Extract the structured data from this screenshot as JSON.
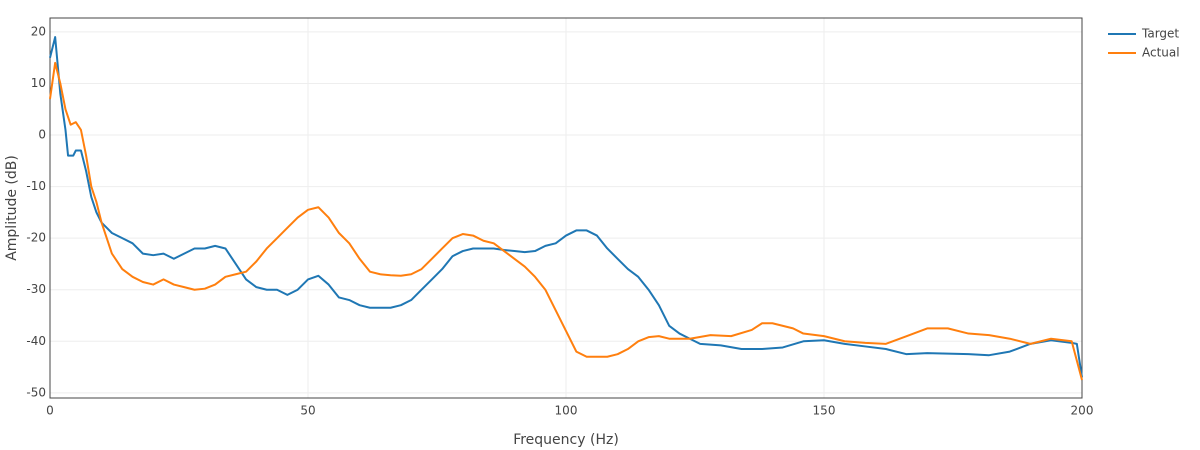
{
  "chart_data": {
    "type": "line",
    "xlabel": "Frequency (Hz)",
    "ylabel": "Amplitude (dB)",
    "xlim": [
      0,
      200
    ],
    "xticks": [
      0,
      50,
      100,
      150,
      200
    ],
    "ylim": [
      -51,
      22.7
    ],
    "yticks": [
      -50,
      -40,
      -30,
      -20,
      -10,
      0,
      10,
      20
    ],
    "grid": true,
    "legend": "outside-right",
    "series": [
      {
        "name": "Target",
        "color": "#1f77b4",
        "x": [
          0,
          1,
          2,
          3,
          3.5,
          4.5,
          5,
          6,
          7,
          8,
          9,
          10,
          11,
          12,
          14,
          16,
          18,
          20,
          22,
          24,
          26,
          28,
          30,
          32,
          34,
          36,
          38,
          40,
          42,
          44,
          46,
          48,
          50,
          52,
          54,
          56,
          58,
          60,
          62,
          64,
          66,
          68,
          70,
          72,
          74,
          76,
          78,
          80,
          82,
          84,
          86,
          88,
          90,
          92,
          94,
          96,
          98,
          100,
          102,
          104,
          106,
          108,
          110,
          112,
          114,
          116,
          118,
          120,
          122,
          124,
          126,
          130,
          134,
          138,
          142,
          146,
          150,
          154,
          158,
          162,
          166,
          170,
          174,
          178,
          182,
          186,
          190,
          194,
          198,
          199,
          200
        ],
        "values": [
          15,
          19,
          8,
          1,
          -4,
          -4,
          -3,
          -3,
          -7,
          -12,
          -15,
          -17,
          -18,
          -19,
          -20,
          -21,
          -23,
          -23.3,
          -23,
          -24,
          -23,
          -22,
          -22,
          -21.5,
          -22,
          -25,
          -28,
          -29.5,
          -30,
          -30,
          -31,
          -30,
          -28,
          -27.3,
          -29,
          -31.5,
          -32,
          -33,
          -33.5,
          -33.5,
          -33.5,
          -33,
          -32,
          -30,
          -28,
          -26,
          -23.5,
          -22.5,
          -22,
          -22,
          -22,
          -22.3,
          -22.5,
          -22.7,
          -22.5,
          -21.5,
          -21,
          -19.5,
          -18.5,
          -18.5,
          -19.5,
          -22,
          -24,
          -26,
          -27.5,
          -30,
          -33,
          -37,
          -38.5,
          -39.5,
          -40.5,
          -40.8,
          -41.5,
          -41.5,
          -41.2,
          -40,
          -39.8,
          -40.5,
          -41,
          -41.5,
          -42.5,
          -42.3,
          -42.4,
          -42.5,
          -42.7,
          -42,
          -40.5,
          -39.8,
          -40.3,
          -40.5,
          -47
        ]
      },
      {
        "name": "Actual",
        "color": "#ff7f0e",
        "x": [
          0,
          1,
          2,
          3,
          4,
          5,
          6,
          7,
          8,
          9,
          10,
          11,
          12,
          14,
          16,
          18,
          20,
          22,
          24,
          26,
          28,
          30,
          32,
          34,
          36,
          38,
          40,
          42,
          44,
          46,
          48,
          50,
          52,
          54,
          56,
          58,
          60,
          62,
          64,
          66,
          68,
          70,
          72,
          74,
          76,
          78,
          80,
          82,
          84,
          86,
          88,
          90,
          92,
          94,
          96,
          98,
          100,
          102,
          104,
          106,
          108,
          110,
          112,
          114,
          116,
          118,
          120,
          124,
          128,
          132,
          136,
          138,
          140,
          144,
          146,
          150,
          154,
          158,
          162,
          166,
          170,
          174,
          178,
          182,
          186,
          190,
          194,
          198,
          200
        ],
        "values": [
          7,
          14,
          10,
          5,
          2,
          2.5,
          1,
          -4,
          -10,
          -13,
          -17,
          -20,
          -23,
          -26,
          -27.5,
          -28.5,
          -29,
          -28,
          -29,
          -29.5,
          -30,
          -29.8,
          -29,
          -27.5,
          -27,
          -26.5,
          -24.5,
          -22,
          -20,
          -18,
          -16,
          -14.5,
          -14,
          -16,
          -19,
          -21,
          -24,
          -26.5,
          -27,
          -27.2,
          -27.3,
          -27,
          -26,
          -24,
          -22,
          -20,
          -19.2,
          -19.5,
          -20.5,
          -21,
          -22.5,
          -24,
          -25.5,
          -27.5,
          -30,
          -34,
          -38,
          -42,
          -43,
          -43,
          -43,
          -42.5,
          -41.5,
          -40,
          -39.2,
          -39,
          -39.5,
          -39.5,
          -38.8,
          -39,
          -37.8,
          -36.5,
          -36.5,
          -37.5,
          -38.5,
          -39,
          -40,
          -40.3,
          -40.5,
          -39,
          -37.5,
          -37.5,
          -38.5,
          -38.8,
          -39.5,
          -40.5,
          -39.5,
          -40,
          -47.5
        ]
      }
    ]
  }
}
